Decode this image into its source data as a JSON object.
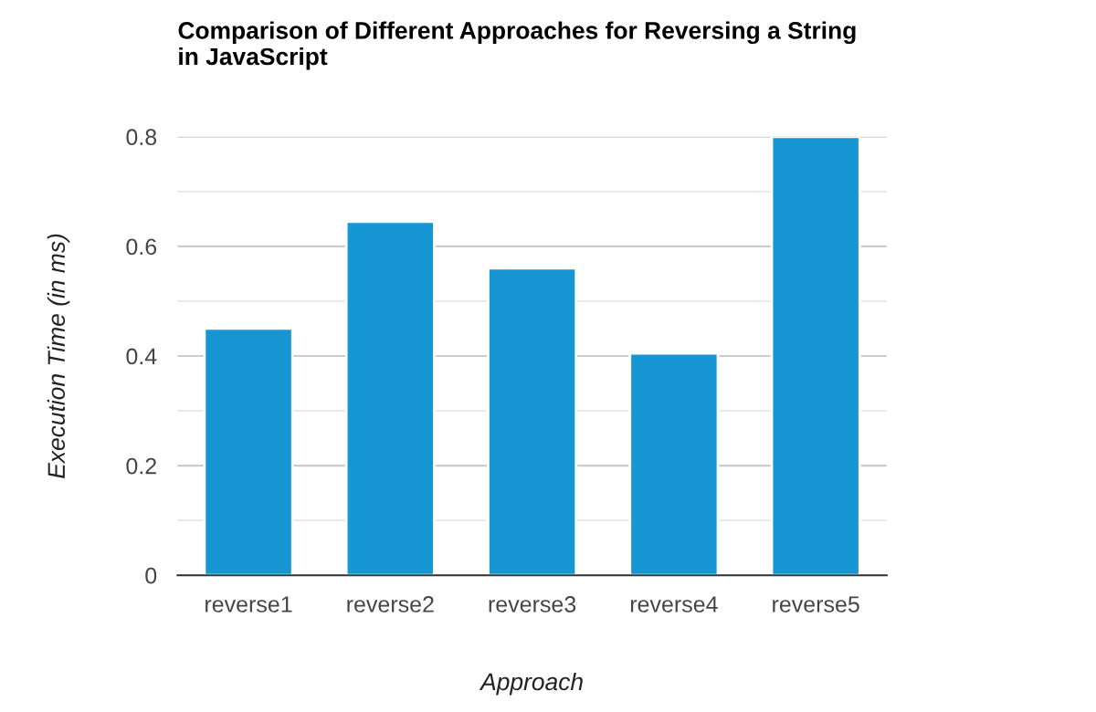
{
  "chart_data": {
    "type": "bar",
    "title": "Comparison of Different Approaches for Reversing a String\nin JavaScript",
    "xlabel": "Approach",
    "ylabel": "Execution Time (in ms)",
    "categories": [
      "reverse1",
      "reverse2",
      "reverse3",
      "reverse4",
      "reverse5"
    ],
    "values": [
      0.45,
      0.645,
      0.56,
      0.405,
      0.8
    ],
    "color": "#1696d2",
    "ylim": [
      0,
      0.8
    ],
    "yticks": [
      0,
      {
        "value": 0.1,
        "label": null
      },
      0.2,
      {
        "value": 0.3,
        "label": null
      },
      0.4,
      {
        "value": 0.5,
        "label": null
      },
      0.6,
      {
        "value": 0.7,
        "label": null
      },
      0.8
    ],
    "grid": "y",
    "legend": false
  }
}
